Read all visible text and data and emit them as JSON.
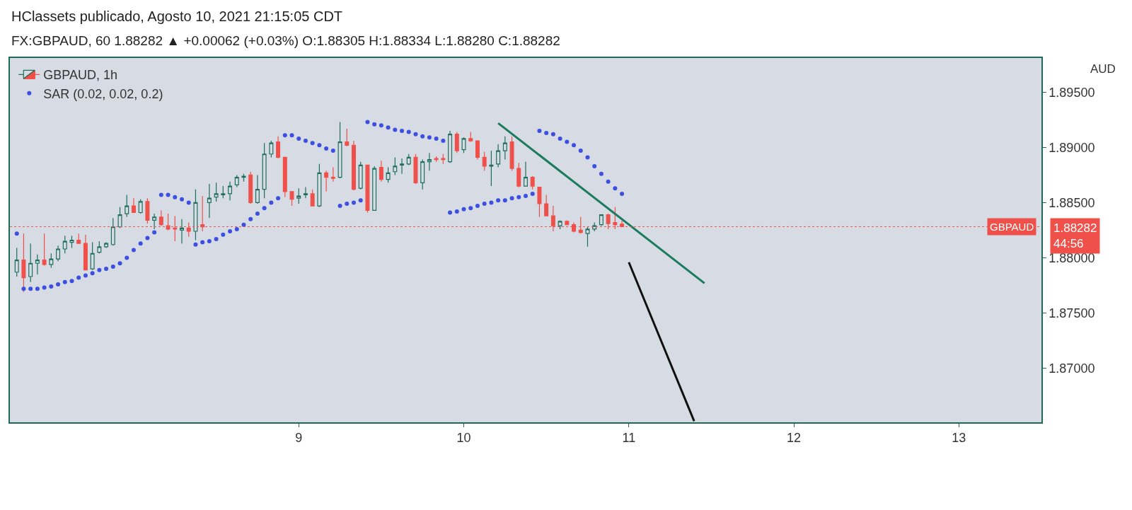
{
  "chart_data": {
    "type": "candlestick",
    "title": "HClassets publicado, Agosto 10, 2021 21:15:05 CDT",
    "subtitle": "FX:GBPAUD, 60 1.88282 ▲ +0.00062 (+0.03%) O:1.88305 H:1.88334 L:1.88280 C:1.88282",
    "ylabel": "AUD",
    "x": [
      "2021-08-07T07:00",
      "2021-08-07T08:00",
      "2021-08-07T09:00",
      "2021-08-07T10:00",
      "2021-08-07T11:00",
      "2021-08-07T12:00",
      "2021-08-07T13:00",
      "2021-08-07T14:00",
      "2021-08-07T15:00",
      "2021-08-07T16:00",
      "2021-08-07T17:00",
      "2021-08-07T18:00",
      "2021-08-07T19:00",
      "2021-08-07T20:00",
      "2021-08-07T21:00",
      "2021-08-07T22:00",
      "2021-08-07T23:00",
      "2021-08-08T00:00",
      "2021-08-08T01:00",
      "2021-08-08T02:00",
      "2021-08-08T03:00",
      "2021-08-08T04:00",
      "2021-08-08T05:00",
      "2021-08-08T06:00",
      "2021-08-08T07:00",
      "2021-08-08T08:00",
      "2021-08-08T09:00",
      "2021-08-08T10:00",
      "2021-08-08T11:00",
      "2021-08-08T12:00",
      "2021-08-08T13:00",
      "2021-08-08T14:00",
      "2021-08-08T15:00",
      "2021-08-08T16:00",
      "2021-08-08T17:00",
      "2021-08-08T18:00",
      "2021-08-08T19:00",
      "2021-08-08T20:00",
      "2021-08-08T21:00",
      "2021-08-08T22:00",
      "2021-08-08T23:00",
      "2021-08-09T00:00",
      "2021-08-09T01:00",
      "2021-08-09T02:00",
      "2021-08-09T03:00",
      "2021-08-09T04:00",
      "2021-08-09T05:00",
      "2021-08-09T06:00",
      "2021-08-09T07:00",
      "2021-08-09T08:00",
      "2021-08-09T09:00",
      "2021-08-09T10:00",
      "2021-08-09T11:00",
      "2021-08-09T12:00",
      "2021-08-09T13:00",
      "2021-08-09T14:00",
      "2021-08-09T15:00",
      "2021-08-09T16:00",
      "2021-08-09T17:00",
      "2021-08-09T18:00",
      "2021-08-09T19:00",
      "2021-08-09T20:00",
      "2021-08-09T21:00",
      "2021-08-09T22:00",
      "2021-08-09T23:00",
      "2021-08-10T00:00",
      "2021-08-10T01:00",
      "2021-08-10T02:00",
      "2021-08-10T03:00",
      "2021-08-10T04:00",
      "2021-08-10T05:00",
      "2021-08-10T06:00",
      "2021-08-10T07:00",
      "2021-08-10T08:00",
      "2021-08-10T09:00",
      "2021-08-10T10:00",
      "2021-08-10T11:00",
      "2021-08-10T12:00",
      "2021-08-10T13:00",
      "2021-08-10T14:00",
      "2021-08-10T15:00",
      "2021-08-10T16:00",
      "2021-08-10T17:00",
      "2021-08-10T18:00",
      "2021-08-10T19:00",
      "2021-08-10T20:00",
      "2021-08-10T21:00",
      "2021-08-10T22:00",
      "2021-08-10T23:00"
    ],
    "series": [
      {
        "name": "GBPAUD, 1h",
        "colors": [
          "#1e6f5c",
          "#f0504a",
          "#1e6f5c",
          "#1e6f5c",
          "#f0504a",
          "#1e6f5c",
          "#1e6f5c",
          "#1e6f5c",
          "#1e6f5c",
          "#f0504a",
          "#f0504a",
          "#1e6f5c",
          "#1e6f5c",
          "#1e6f5c",
          "#1e6f5c",
          "#1e6f5c",
          "#1e6f5c",
          "#f0504a",
          "#1e6f5c",
          "#f0504a",
          "#1e6f5c",
          "#f0504a",
          "#f0504a",
          "#f0504a",
          "#1e6f5c",
          "#f0504a",
          "#1e6f5c",
          "#f0504a",
          "#1e6f5c",
          "#1e6f5c",
          "#1e6f5c",
          "#1e6f5c",
          "#1e6f5c",
          "#1e6f5c",
          "#f0504a",
          "#1e6f5c",
          "#1e6f5c",
          "#1e6f5c",
          "#f0504a",
          "#f0504a",
          "#f0504a",
          "#1e6f5c",
          "#1e6f5c",
          "#f0504a",
          "#1e6f5c",
          "#f0504a",
          "#f0504a",
          "#1e6f5c",
          "#f0504a",
          "#f0504a",
          "#1e6f5c",
          "#f0504a",
          "#1e6f5c",
          "#f0504a",
          "#1e6f5c",
          "#1e6f5c",
          "#1e6f5c",
          "#1e6f5c",
          "#f0504a",
          "#1e6f5c",
          "#1e6f5c",
          "#f0504a",
          "#f0504a",
          "#1e6f5c",
          "#f0504a",
          "#1e6f5c",
          "#f0504a",
          "#f0504a",
          "#f0504a",
          "#1e6f5c",
          "#1e6f5c",
          "#1e6f5c",
          "#f0504a",
          "#f0504a",
          "#1e6f5c",
          "#f0504a",
          "#f0504a",
          "#f0504a",
          "#f0504a",
          "#1e6f5c",
          "#f0504a",
          "#f0504a",
          "#f0504a",
          "#1e6f5c",
          "#1e6f5c",
          "#1e6f5c",
          "#f0504a",
          "#f0504a",
          "#f0504a"
        ],
        "ohlc": [
          [
            1.8787,
            1.8809,
            1.8783,
            1.8798
          ],
          [
            1.8798,
            1.8822,
            1.8769,
            1.8782
          ],
          [
            1.8783,
            1.8813,
            1.8778,
            1.8795
          ],
          [
            1.8795,
            1.8803,
            1.8785,
            1.8798
          ],
          [
            1.8798,
            1.8822,
            1.8793,
            1.8794
          ],
          [
            1.8794,
            1.8804,
            1.8791,
            1.8799
          ],
          [
            1.8799,
            1.8811,
            1.8797,
            1.8808
          ],
          [
            1.8808,
            1.882,
            1.8804,
            1.8815
          ],
          [
            1.8814,
            1.882,
            1.8809,
            1.8816
          ],
          [
            1.8816,
            1.8822,
            1.8813,
            1.8813
          ],
          [
            1.8813,
            1.8821,
            1.8789,
            1.8789
          ],
          [
            1.879,
            1.8814,
            1.8789,
            1.8804
          ],
          [
            1.8805,
            1.8815,
            1.8804,
            1.881
          ],
          [
            1.881,
            1.8814,
            1.8809,
            1.8813
          ],
          [
            1.8812,
            1.8836,
            1.8811,
            1.8828
          ],
          [
            1.8828,
            1.8846,
            1.8827,
            1.8839
          ],
          [
            1.884,
            1.8857,
            1.8837,
            1.8847
          ],
          [
            1.8847,
            1.8854,
            1.8841,
            1.8841
          ],
          [
            1.8841,
            1.8853,
            1.884,
            1.8851
          ],
          [
            1.8851,
            1.8854,
            1.8831,
            1.8834
          ],
          [
            1.8834,
            1.884,
            1.8826,
            1.8837
          ],
          [
            1.8837,
            1.8843,
            1.8829,
            1.883
          ],
          [
            1.8829,
            1.884,
            1.8825,
            1.8826
          ],
          [
            1.8827,
            1.8838,
            1.8815,
            1.8826
          ],
          [
            1.8825,
            1.8835,
            1.8813,
            1.8827
          ],
          [
            1.8827,
            1.8832,
            1.8819,
            1.8824
          ],
          [
            1.8824,
            1.8862,
            1.8816,
            1.885
          ],
          [
            1.883,
            1.8856,
            1.8824,
            1.8828
          ],
          [
            1.885,
            1.8867,
            1.8836,
            1.8854
          ],
          [
            1.8855,
            1.8868,
            1.8851,
            1.8858
          ],
          [
            1.8857,
            1.8865,
            1.8854,
            1.8858
          ],
          [
            1.8858,
            1.8869,
            1.8852,
            1.8865
          ],
          [
            1.8866,
            1.8875,
            1.8864,
            1.8873
          ],
          [
            1.8873,
            1.8876,
            1.8869,
            1.8874
          ],
          [
            1.8875,
            1.8878,
            1.8849,
            1.885
          ],
          [
            1.885,
            1.8875,
            1.8849,
            1.8862
          ],
          [
            1.8862,
            1.8904,
            1.8854,
            1.8894
          ],
          [
            1.8894,
            1.8906,
            1.8891,
            1.8904
          ],
          [
            1.8905,
            1.891,
            1.889,
            1.8891
          ],
          [
            1.8891,
            1.8891,
            1.8855,
            1.886
          ],
          [
            1.886,
            1.886,
            1.8847,
            1.8853
          ],
          [
            1.8854,
            1.8863,
            1.8849,
            1.8856
          ],
          [
            1.8857,
            1.8864,
            1.8854,
            1.8858
          ],
          [
            1.8858,
            1.8862,
            1.8847,
            1.8847
          ],
          [
            1.8847,
            1.8885,
            1.8846,
            1.8877
          ],
          [
            1.8877,
            1.8879,
            1.886,
            1.8873
          ],
          [
            1.8873,
            1.8882,
            1.8869,
            1.8872
          ],
          [
            1.8873,
            1.8923,
            1.8872,
            1.8905
          ],
          [
            1.8905,
            1.8917,
            1.8901,
            1.8902
          ],
          [
            1.8902,
            1.8906,
            1.8861,
            1.8862
          ],
          [
            1.8863,
            1.8887,
            1.8862,
            1.8884
          ],
          [
            1.8884,
            1.8884,
            1.8841,
            1.8843
          ],
          [
            1.8843,
            1.8883,
            1.8843,
            1.8881
          ],
          [
            1.8882,
            1.8888,
            1.8869,
            1.8871
          ],
          [
            1.8871,
            1.8882,
            1.8868,
            1.8877
          ],
          [
            1.8878,
            1.8891,
            1.8875,
            1.8883
          ],
          [
            1.8884,
            1.889,
            1.8876,
            1.8885
          ],
          [
            1.8885,
            1.8894,
            1.8884,
            1.8891
          ],
          [
            1.8891,
            1.8894,
            1.8867,
            1.8868
          ],
          [
            1.8868,
            1.8889,
            1.8862,
            1.8887
          ],
          [
            1.8887,
            1.8895,
            1.8879,
            1.8889
          ],
          [
            1.889,
            1.8892,
            1.8887,
            1.8889
          ],
          [
            1.889,
            1.8894,
            1.8885,
            1.8889
          ],
          [
            1.8887,
            1.8915,
            1.8886,
            1.8912
          ],
          [
            1.8912,
            1.8914,
            1.8895,
            1.8897
          ],
          [
            1.8898,
            1.8909,
            1.8895,
            1.8908
          ],
          [
            1.8908,
            1.8914,
            1.8905,
            1.8906
          ],
          [
            1.8906,
            1.8906,
            1.8889,
            1.8891
          ],
          [
            1.8891,
            1.8896,
            1.8879,
            1.8883
          ],
          [
            1.8883,
            1.8897,
            1.8865,
            1.8884
          ],
          [
            1.8885,
            1.8903,
            1.8882,
            1.8897
          ],
          [
            1.8897,
            1.891,
            1.8889,
            1.8904
          ],
          [
            1.8905,
            1.891,
            1.8879,
            1.8881
          ],
          [
            1.8881,
            1.8886,
            1.8864,
            1.8865
          ],
          [
            1.8865,
            1.8887,
            1.8865,
            1.8873
          ],
          [
            1.8873,
            1.8874,
            1.8862,
            1.8865
          ],
          [
            1.8864,
            1.8864,
            1.8837,
            1.8849
          ],
          [
            1.8849,
            1.8857,
            1.8838,
            1.8838
          ],
          [
            1.8838,
            1.8847,
            1.8824,
            1.8829
          ],
          [
            1.8829,
            1.8834,
            1.8826,
            1.8833
          ],
          [
            1.8833,
            1.8834,
            1.883,
            1.883
          ],
          [
            1.883,
            1.8832,
            1.8823,
            1.8824
          ],
          [
            1.8825,
            1.8837,
            1.8822,
            1.8823
          ],
          [
            1.8822,
            1.8828,
            1.881,
            1.8826
          ],
          [
            1.8826,
            1.8832,
            1.8824,
            1.8829
          ],
          [
            1.883,
            1.8839,
            1.8829,
            1.8839
          ],
          [
            1.8839,
            1.884,
            1.8826,
            1.8831
          ],
          [
            1.8832,
            1.8846,
            1.8826,
            1.883
          ],
          [
            1.88305,
            1.88334,
            1.8828,
            1.88282
          ]
        ]
      },
      {
        "name": "SAR (0.02, 0.02, 0.2)",
        "type": "scatter",
        "marker": "circle",
        "color": "#3d4fe0",
        "x": [
          "2021-08-07T07:00",
          "2021-08-07T08:00",
          "2021-08-07T09:00",
          "2021-08-07T10:00",
          "2021-08-07T11:00",
          "2021-08-07T12:00",
          "2021-08-07T13:00",
          "2021-08-07T14:00",
          "2021-08-07T15:00",
          "2021-08-07T16:00",
          "2021-08-07T17:00",
          "2021-08-07T18:00",
          "2021-08-07T19:00",
          "2021-08-07T20:00",
          "2021-08-07T21:00",
          "2021-08-07T22:00",
          "2021-08-07T23:00",
          "2021-08-08T00:00",
          "2021-08-08T01:00",
          "2021-08-08T02:00",
          "2021-08-08T03:00",
          "2021-08-08T04:00",
          "2021-08-08T05:00",
          "2021-08-08T06:00",
          "2021-08-08T07:00",
          "2021-08-08T08:00",
          "2021-08-08T09:00",
          "2021-08-08T10:00",
          "2021-08-08T11:00",
          "2021-08-08T12:00",
          "2021-08-08T13:00",
          "2021-08-08T14:00",
          "2021-08-08T15:00",
          "2021-08-08T16:00",
          "2021-08-08T17:00",
          "2021-08-08T18:00",
          "2021-08-08T19:00",
          "2021-08-08T20:00",
          "2021-08-08T21:00",
          "2021-08-08T22:00",
          "2021-08-08T23:00",
          "2021-08-09T00:00",
          "2021-08-09T01:00",
          "2021-08-09T02:00",
          "2021-08-09T03:00",
          "2021-08-09T04:00",
          "2021-08-09T05:00",
          "2021-08-09T06:00",
          "2021-08-09T07:00",
          "2021-08-09T08:00",
          "2021-08-09T09:00",
          "2021-08-09T10:00",
          "2021-08-09T11:00",
          "2021-08-09T12:00",
          "2021-08-09T13:00",
          "2021-08-09T14:00",
          "2021-08-09T15:00",
          "2021-08-09T16:00",
          "2021-08-09T17:00",
          "2021-08-09T18:00",
          "2021-08-09T19:00",
          "2021-08-09T20:00",
          "2021-08-09T21:00",
          "2021-08-09T22:00",
          "2021-08-09T23:00",
          "2021-08-10T00:00",
          "2021-08-10T01:00",
          "2021-08-10T02:00",
          "2021-08-10T03:00",
          "2021-08-10T04:00",
          "2021-08-10T05:00",
          "2021-08-10T06:00",
          "2021-08-10T07:00",
          "2021-08-10T08:00",
          "2021-08-10T09:00",
          "2021-08-10T10:00",
          "2021-08-10T11:00",
          "2021-08-10T12:00",
          "2021-08-10T13:00",
          "2021-08-10T14:00",
          "2021-08-10T15:00",
          "2021-08-10T16:00",
          "2021-08-10T17:00",
          "2021-08-10T18:00",
          "2021-08-10T19:00",
          "2021-08-10T20:00",
          "2021-08-10T21:00",
          "2021-08-10T22:00",
          "2021-08-10T23:00"
        ],
        "values": [
          1.8822,
          1.8772,
          1.8772,
          1.8772,
          1.8773,
          1.8774,
          1.8776,
          1.8778,
          1.8779,
          1.8782,
          1.8784,
          1.8786,
          1.8789,
          1.879,
          1.8792,
          1.8795,
          1.88,
          1.8807,
          1.8813,
          1.8818,
          1.8823,
          1.8857,
          1.8857,
          1.8855,
          1.8853,
          1.885,
          1.8812,
          1.8814,
          1.8815,
          1.8817,
          1.8821,
          1.8824,
          1.8826,
          1.883,
          1.8835,
          1.884,
          1.8845,
          1.885,
          1.8854,
          1.8911,
          1.8911,
          1.8908,
          1.8906,
          1.8904,
          1.8902,
          1.8899,
          1.8897,
          1.8847,
          1.8849,
          1.885,
          1.8852,
          1.8923,
          1.8921,
          1.892,
          1.8918,
          1.8916,
          1.8915,
          1.8914,
          1.8912,
          1.891,
          1.8909,
          1.8908,
          1.8906,
          1.8841,
          1.8842,
          1.8844,
          1.8845,
          1.8847,
          1.8849,
          1.885,
          1.8852,
          1.8852,
          1.8854,
          1.8855,
          1.8856,
          1.8858,
          1.8915,
          1.8913,
          1.8912,
          1.8908,
          1.8905,
          1.8902,
          1.8897,
          1.8891,
          1.8883,
          1.8876,
          1.8869,
          1.8863,
          1.8858
        ]
      },
      {
        "type": "line",
        "color": "#1b7a5e",
        "x": [
          "2021-08-10T05:00",
          "2021-08-11T11:00"
        ],
        "values": [
          1.8922,
          1.8777
        ]
      },
      {
        "type": "line",
        "color": "#111111",
        "x": [
          "2021-08-11T00:00",
          "2021-08-11T09:30"
        ],
        "values": [
          1.8796,
          1.8652
        ]
      }
    ],
    "xlim": [
      "2021-08-07T06:00",
      "2021-08-13T12:00"
    ],
    "xticks": [
      {
        "value": "2021-08-09",
        "label": "9"
      },
      {
        "value": "2021-08-10",
        "label": "10"
      },
      {
        "value": "2021-08-11",
        "label": "11"
      },
      {
        "value": "2021-08-12",
        "label": "12"
      },
      {
        "value": "2021-08-13",
        "label": "13"
      }
    ],
    "ylim": [
      1.8651,
      1.8981
    ],
    "yticks": [
      {
        "value": 1.87,
        "label": "1.87000"
      },
      {
        "value": 1.875,
        "label": "1.87500"
      },
      {
        "value": 1.88,
        "label": "1.88000"
      },
      {
        "value": 1.885,
        "label": "1.88500"
      },
      {
        "value": 1.89,
        "label": "1.89000"
      },
      {
        "value": 1.895,
        "label": "1.89500"
      }
    ],
    "ref_lines": [
      {
        "axis": "y",
        "value": 1.88282,
        "label": "GBPAUD",
        "color": "#f0504a",
        "line_style": "dotted"
      }
    ],
    "annotations": [
      "1.88282\n44:56"
    ],
    "legend": "top left"
  }
}
